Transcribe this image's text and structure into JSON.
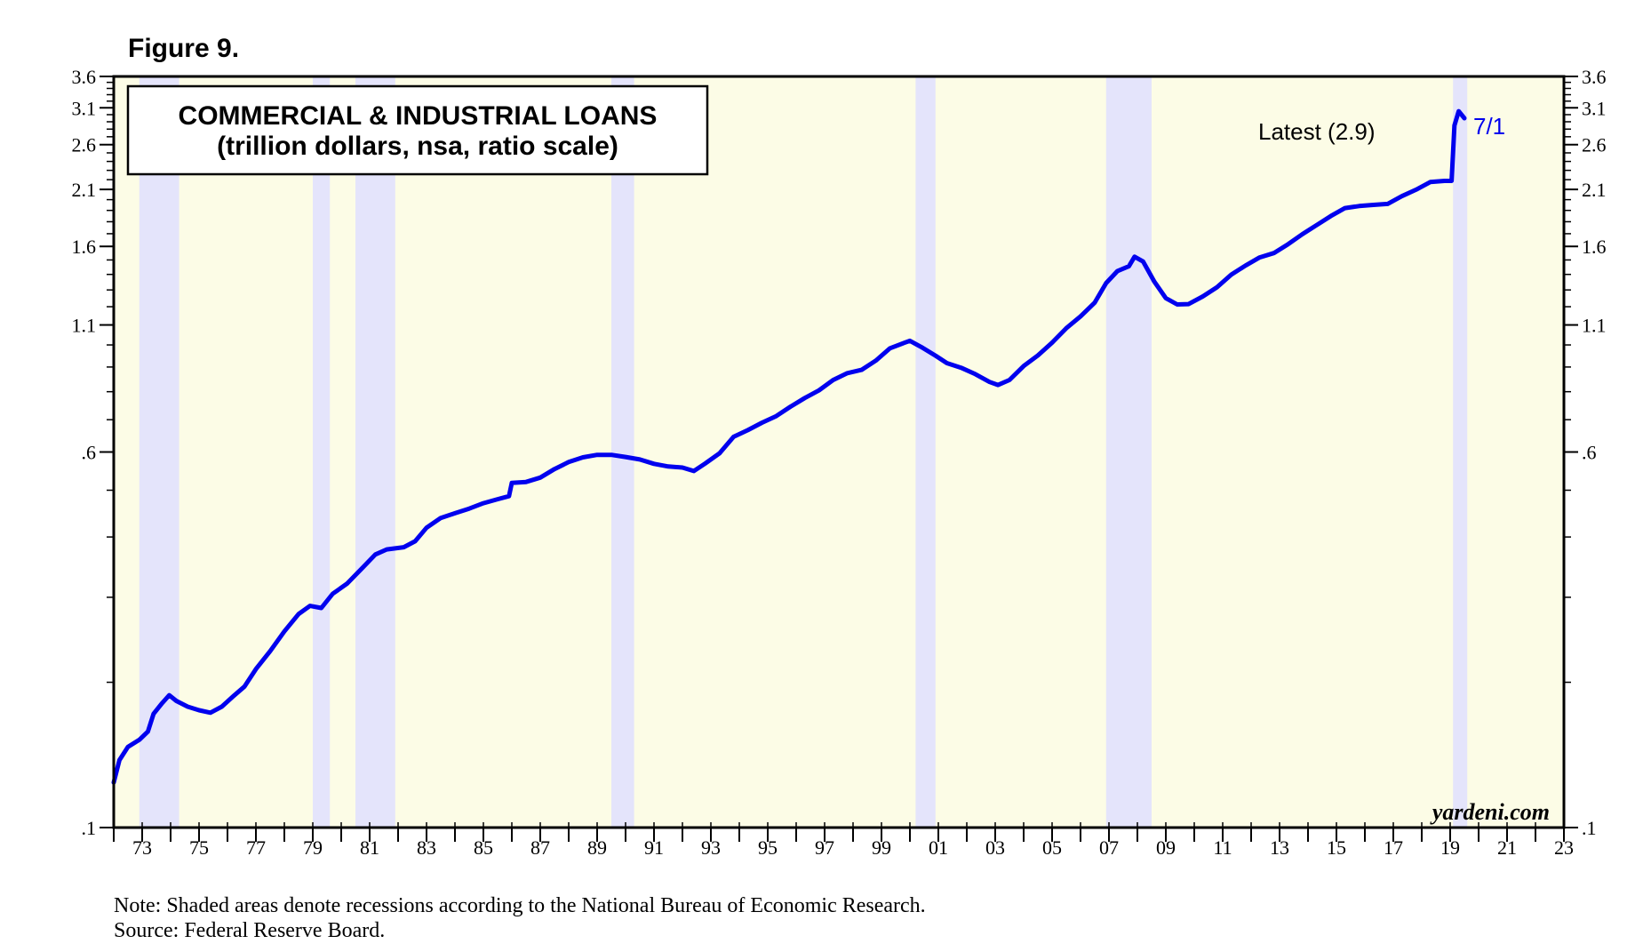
{
  "figure_label": "Figure 9.",
  "title_line1": "COMMERCIAL & INDUSTRIAL LOANS",
  "title_line2": "(trillion dollars, nsa, ratio scale)",
  "latest_label": "Latest (2.9)",
  "latest_date_label": "7/1",
  "watermark": "yardeni.com",
  "note": "Note: Shaded areas denote recessions according to the National Bureau of Economic Research.",
  "source": "Source: Federal Reserve Board.",
  "colors": {
    "series": "#0000ee",
    "background": "#fcfce6",
    "recession": "#e4e4fb",
    "frame": "#000000"
  },
  "chart_data": {
    "type": "line",
    "scale": "log",
    "xlim": [
      1973.0,
      2024.0
    ],
    "ylim": [
      0.1,
      3.6
    ],
    "y_ticks": [
      {
        "value": 3.6,
        "label": "3.6"
      },
      {
        "value": 3.1,
        "label": "3.1"
      },
      {
        "value": 2.6,
        "label": "2.6"
      },
      {
        "value": 2.1,
        "label": "2.1"
      },
      {
        "value": 1.6,
        "label": "1.6"
      },
      {
        "value": 1.1,
        "label": "1.1"
      },
      {
        "value": 0.6,
        "label": ".6"
      },
      {
        "value": 0.1,
        "label": ".1"
      }
    ],
    "x_tick_labels": [
      "73",
      "75",
      "77",
      "79",
      "81",
      "83",
      "85",
      "87",
      "89",
      "91",
      "93",
      "95",
      "97",
      "99",
      "01",
      "03",
      "05",
      "07",
      "09",
      "11",
      "13",
      "15",
      "17",
      "19",
      "21",
      "23"
    ],
    "recessions": [
      [
        1973.9,
        1975.3
      ],
      [
        1980.0,
        1980.6
      ],
      [
        1981.5,
        1982.9
      ],
      [
        1990.5,
        1991.3
      ],
      [
        2001.2,
        2001.9
      ],
      [
        2007.9,
        2009.5
      ],
      [
        2020.1,
        2020.6
      ]
    ],
    "series": [
      {
        "points": [
          [
            1973.0,
            0.124
          ],
          [
            1973.2,
            0.138
          ],
          [
            1973.5,
            0.147
          ],
          [
            1973.9,
            0.152
          ],
          [
            1974.2,
            0.158
          ],
          [
            1974.4,
            0.172
          ],
          [
            1974.7,
            0.181
          ],
          [
            1974.95,
            0.188
          ],
          [
            1975.2,
            0.183
          ],
          [
            1975.6,
            0.178
          ],
          [
            1976.0,
            0.175
          ],
          [
            1976.4,
            0.173
          ],
          [
            1976.8,
            0.178
          ],
          [
            1977.2,
            0.187
          ],
          [
            1977.6,
            0.196
          ],
          [
            1978.0,
            0.213
          ],
          [
            1978.5,
            0.232
          ],
          [
            1979.0,
            0.255
          ],
          [
            1979.5,
            0.277
          ],
          [
            1979.9,
            0.288
          ],
          [
            1980.3,
            0.285
          ],
          [
            1980.7,
            0.305
          ],
          [
            1981.2,
            0.32
          ],
          [
            1981.7,
            0.343
          ],
          [
            1982.2,
            0.368
          ],
          [
            1982.6,
            0.377
          ],
          [
            1983.2,
            0.381
          ],
          [
            1983.6,
            0.392
          ],
          [
            1984.0,
            0.418
          ],
          [
            1984.5,
            0.438
          ],
          [
            1985.0,
            0.448
          ],
          [
            1985.5,
            0.458
          ],
          [
            1986.0,
            0.47
          ],
          [
            1986.5,
            0.479
          ],
          [
            1986.9,
            0.486
          ],
          [
            1987.0,
            0.518
          ],
          [
            1987.5,
            0.52
          ],
          [
            1988.0,
            0.531
          ],
          [
            1988.5,
            0.553
          ],
          [
            1989.0,
            0.572
          ],
          [
            1989.5,
            0.585
          ],
          [
            1990.0,
            0.592
          ],
          [
            1990.5,
            0.592
          ],
          [
            1991.0,
            0.586
          ],
          [
            1991.5,
            0.579
          ],
          [
            1992.0,
            0.567
          ],
          [
            1992.5,
            0.56
          ],
          [
            1993.0,
            0.557
          ],
          [
            1993.4,
            0.548
          ],
          [
            1993.8,
            0.568
          ],
          [
            1994.3,
            0.596
          ],
          [
            1994.8,
            0.645
          ],
          [
            1995.3,
            0.666
          ],
          [
            1995.8,
            0.69
          ],
          [
            1996.3,
            0.712
          ],
          [
            1996.8,
            0.745
          ],
          [
            1997.3,
            0.776
          ],
          [
            1997.8,
            0.805
          ],
          [
            1998.3,
            0.846
          ],
          [
            1998.8,
            0.874
          ],
          [
            1999.3,
            0.888
          ],
          [
            1999.8,
            0.928
          ],
          [
            2000.3,
            0.984
          ],
          [
            2000.8,
            1.01
          ],
          [
            2001.0,
            1.02
          ],
          [
            2001.4,
            0.99
          ],
          [
            2001.9,
            0.95
          ],
          [
            2002.3,
            0.917
          ],
          [
            2002.8,
            0.897
          ],
          [
            2003.3,
            0.87
          ],
          [
            2003.8,
            0.838
          ],
          [
            2004.1,
            0.826
          ],
          [
            2004.5,
            0.846
          ],
          [
            2005.0,
            0.904
          ],
          [
            2005.5,
            0.951
          ],
          [
            2006.0,
            1.011
          ],
          [
            2006.5,
            1.083
          ],
          [
            2007.0,
            1.146
          ],
          [
            2007.5,
            1.224
          ],
          [
            2007.9,
            1.343
          ],
          [
            2008.3,
            1.423
          ],
          [
            2008.7,
            1.455
          ],
          [
            2008.9,
            1.523
          ],
          [
            2009.2,
            1.489
          ],
          [
            2009.6,
            1.351
          ],
          [
            2010.0,
            1.25
          ],
          [
            2010.4,
            1.213
          ],
          [
            2010.8,
            1.215
          ],
          [
            2011.3,
            1.26
          ],
          [
            2011.8,
            1.317
          ],
          [
            2012.3,
            1.398
          ],
          [
            2012.8,
            1.46
          ],
          [
            2013.3,
            1.518
          ],
          [
            2013.8,
            1.55
          ],
          [
            2014.3,
            1.617
          ],
          [
            2014.8,
            1.696
          ],
          [
            2015.3,
            1.771
          ],
          [
            2015.8,
            1.849
          ],
          [
            2016.3,
            1.921
          ],
          [
            2016.8,
            1.94
          ],
          [
            2017.3,
            1.951
          ],
          [
            2017.8,
            1.96
          ],
          [
            2018.3,
            2.033
          ],
          [
            2018.8,
            2.097
          ],
          [
            2019.3,
            2.175
          ],
          [
            2019.8,
            2.187
          ],
          [
            2020.05,
            2.187
          ],
          [
            2020.15,
            2.85
          ],
          [
            2020.3,
            3.05
          ],
          [
            2020.5,
            2.95
          ]
        ]
      }
    ]
  }
}
